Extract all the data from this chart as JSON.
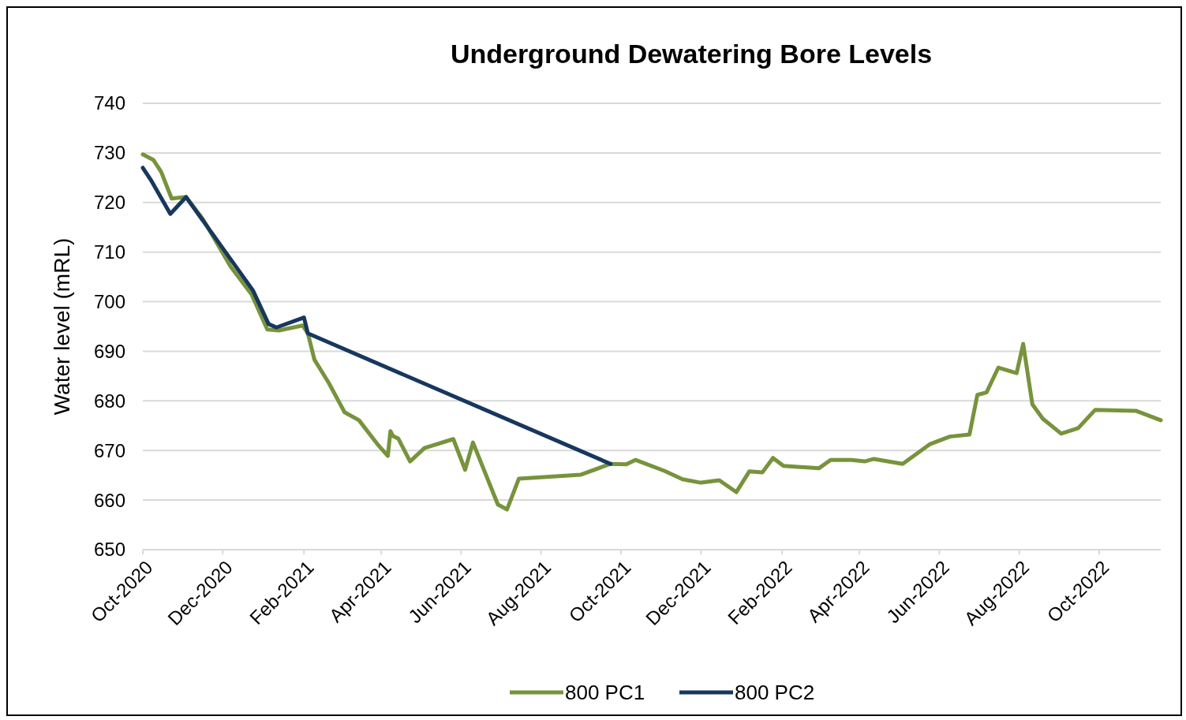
{
  "chart_data": {
    "type": "line",
    "title": "Underground Dewatering Bore Levels",
    "ylabel": "Water level (mRL)",
    "xlim": [
      "2020-10-01",
      "2022-11-17"
    ],
    "xticks": [
      {
        "value": "2020-10-01",
        "label": "Oct-2020"
      },
      {
        "value": "2020-12-01",
        "label": "Dec-2020"
      },
      {
        "value": "2021-02-01",
        "label": "Feb-2021"
      },
      {
        "value": "2021-04-01",
        "label": "Apr-2021"
      },
      {
        "value": "2021-06-01",
        "label": "Jun-2021"
      },
      {
        "value": "2021-08-01",
        "label": "Aug-2021"
      },
      {
        "value": "2021-10-01",
        "label": "Oct-2021"
      },
      {
        "value": "2021-12-01",
        "label": "Dec-2021"
      },
      {
        "value": "2022-02-01",
        "label": "Feb-2022"
      },
      {
        "value": "2022-04-01",
        "label": "Apr-2022"
      },
      {
        "value": "2022-06-01",
        "label": "Jun-2022"
      },
      {
        "value": "2022-08-01",
        "label": "Aug-2022"
      },
      {
        "value": "2022-10-01",
        "label": "Oct-2022"
      }
    ],
    "ylim": [
      650,
      740
    ],
    "yticks": [
      650,
      660,
      670,
      680,
      690,
      700,
      710,
      720,
      730,
      740
    ],
    "grid": "y",
    "legend": "bottom",
    "marker": "none",
    "line_style": "solid",
    "series": [
      {
        "name": "800 PC1",
        "color": "#77933c",
        "x": [
          "2020-10-01",
          "2020-10-09",
          "2020-10-15",
          "2020-10-23",
          "2020-11-03",
          "2020-11-16",
          "2020-12-07",
          "2020-12-23",
          "2021-01-04",
          "2021-01-13",
          "2021-01-31",
          "2021-02-04",
          "2021-02-09",
          "2021-02-20",
          "2021-03-04",
          "2021-03-15",
          "2021-03-29",
          "2021-04-06",
          "2021-04-08",
          "2021-04-10",
          "2021-04-14",
          "2021-04-23",
          "2021-05-04",
          "2021-05-26",
          "2021-06-04",
          "2021-06-10",
          "2021-06-29",
          "2021-07-06",
          "2021-07-15",
          "2021-08-31",
          "2021-09-23",
          "2021-10-05",
          "2021-10-12",
          "2021-11-03",
          "2021-11-17",
          "2021-12-01",
          "2021-12-15",
          "2021-12-28",
          "2022-01-07",
          "2022-01-17",
          "2022-01-25",
          "2022-02-02",
          "2022-03-01",
          "2022-03-10",
          "2022-03-26",
          "2022-04-05",
          "2022-04-12",
          "2022-05-04",
          "2022-05-25",
          "2022-06-09",
          "2022-06-24",
          "2022-06-30",
          "2022-07-07",
          "2022-07-16",
          "2022-07-30",
          "2022-08-04",
          "2022-08-11",
          "2022-08-19",
          "2022-09-02",
          "2022-09-15",
          "2022-09-28",
          "2022-10-29",
          "2022-11-17"
        ],
        "values": [
          729.7,
          728.6,
          726.2,
          720.8,
          721.1,
          716.6,
          707.1,
          701.5,
          694.4,
          694.2,
          695.2,
          693.6,
          688.3,
          683.6,
          677.7,
          676.1,
          671.3,
          668.9,
          673.9,
          672.9,
          672.4,
          667.8,
          670.5,
          672.3,
          666.1,
          671.6,
          659.1,
          658.1,
          664.3,
          665.1,
          667.3,
          667.2,
          668.1,
          665.9,
          664.2,
          663.5,
          664.0,
          661.6,
          665.8,
          665.6,
          668.5,
          666.9,
          666.4,
          668.1,
          668.1,
          667.8,
          668.3,
          667.3,
          671.3,
          672.8,
          673.2,
          681.2,
          681.7,
          686.7,
          685.6,
          691.5,
          679.3,
          676.4,
          673.4,
          674.5,
          678.2,
          678.0,
          676.1
        ]
      },
      {
        "name": "800 PC2",
        "color": "#17375e",
        "x": [
          "2020-10-01",
          "2020-10-07",
          "2020-10-22",
          "2020-11-03",
          "2020-12-24",
          "2021-01-05",
          "2021-01-11",
          "2021-02-01",
          "2021-02-04",
          "2021-09-23"
        ],
        "values": [
          727.0,
          724.6,
          717.7,
          721.1,
          702.3,
          695.5,
          694.8,
          696.8,
          693.6,
          667.3
        ]
      }
    ]
  }
}
